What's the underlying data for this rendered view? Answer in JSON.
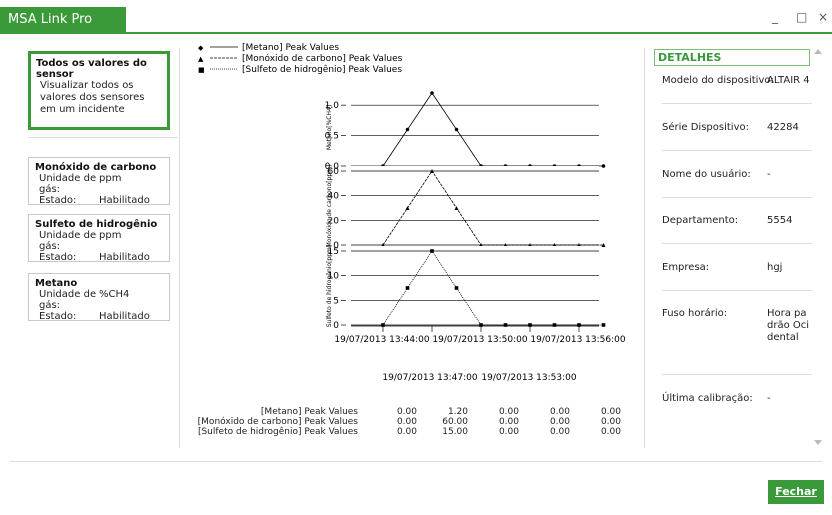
{
  "window": {
    "title": "MSA Link Pro",
    "controls": {
      "minimize": "_",
      "maximize": "□",
      "close": "×"
    }
  },
  "sidebar": {
    "selected": {
      "title": "Todos os valores do sensor",
      "desc": "Visualizar todos os valores dos sensores em um incidente"
    },
    "sensors": [
      {
        "name": "Monóxido de carbono",
        "unit_label": "Unidade de gás:",
        "unit": "ppm",
        "state_label": "Estado:",
        "state": "Habilitado"
      },
      {
        "name": "Sulfeto de hidrogênio",
        "unit_label": "Unidade de gás:",
        "unit": "ppm",
        "state_label": "Estado:",
        "state": "Habilitado"
      },
      {
        "name": "Metano",
        "unit_label": "Unidade de gás:",
        "unit": "%CH4",
        "state_label": "Estado:",
        "state": "Habilitado"
      }
    ]
  },
  "chart_data": {
    "type": "line",
    "legend": [
      {
        "marker": "◆",
        "name": "[Metano] Peak Values"
      },
      {
        "marker": "▲",
        "name": "[Monóxido de carbono] Peak Values"
      },
      {
        "marker": "■",
        "name": "[Sulfeto de hidrogênio] Peak Values"
      }
    ],
    "panels": [
      {
        "ylabel": "Metano[%CH4]",
        "yticks": [
          "1.0",
          "0.5",
          "0.0"
        ],
        "ylim": [
          0,
          1.2
        ],
        "values": [
          0,
          0.6,
          1.2,
          0.6,
          0,
          0,
          0,
          0,
          0,
          0
        ]
      },
      {
        "ylabel": "Monóxido de carbono[ppm]",
        "yticks": [
          "60",
          "40",
          "20",
          "0"
        ],
        "ylim": [
          0,
          60
        ],
        "values": [
          0,
          30,
          60,
          30,
          0,
          0,
          0,
          0,
          0,
          0
        ]
      },
      {
        "ylabel": "Sulfeto de hidrogênio[ppm]",
        "yticks": [
          "15",
          "10",
          "5",
          "0"
        ],
        "ylim": [
          0,
          15
        ],
        "values": [
          0,
          7.5,
          15,
          7.5,
          0,
          0,
          0,
          0,
          0,
          0
        ]
      }
    ],
    "x_top_ticks": [
      "19/07/2013 13:44:00",
      "19/07/2013 13:50:00",
      "19/07/2013 13:56:00"
    ],
    "x_bottom_ticks": [
      "19/07/2013 13:47:00",
      "19/07/2013 13:53:00"
    ],
    "table": {
      "rows": [
        {
          "name": "[Metano] Peak Values",
          "values": [
            "0.00",
            "1.20",
            "0.00",
            "0.00",
            "0.00"
          ]
        },
        {
          "name": "[Monóxido de carbono] Peak Values",
          "values": [
            "0.00",
            "60.00",
            "0.00",
            "0.00",
            "0.00"
          ]
        },
        {
          "name": "[Sulfeto de hidrogênio] Peak Values",
          "values": [
            "0.00",
            "15.00",
            "0.00",
            "0.00",
            "0.00"
          ]
        }
      ]
    }
  },
  "details": {
    "header": "DETALHES",
    "rows": [
      {
        "label": "Modelo do dispositivo:",
        "value": "ALTAIR 4"
      },
      {
        "label": "Série Dispositivo:",
        "value": "42284"
      },
      {
        "label": "Nome do usuário:",
        "value": "-"
      },
      {
        "label": "Departamento:",
        "value": "5554"
      },
      {
        "label": "Empresa:",
        "value": "hgj"
      },
      {
        "label": "Fuso horário:",
        "value": "Hora padrão Ocidental"
      },
      {
        "label": "Última calibração:",
        "value": "-"
      }
    ]
  },
  "footer": {
    "close_label": "Fechar"
  },
  "colors": {
    "accent": "#3a9a3a"
  }
}
